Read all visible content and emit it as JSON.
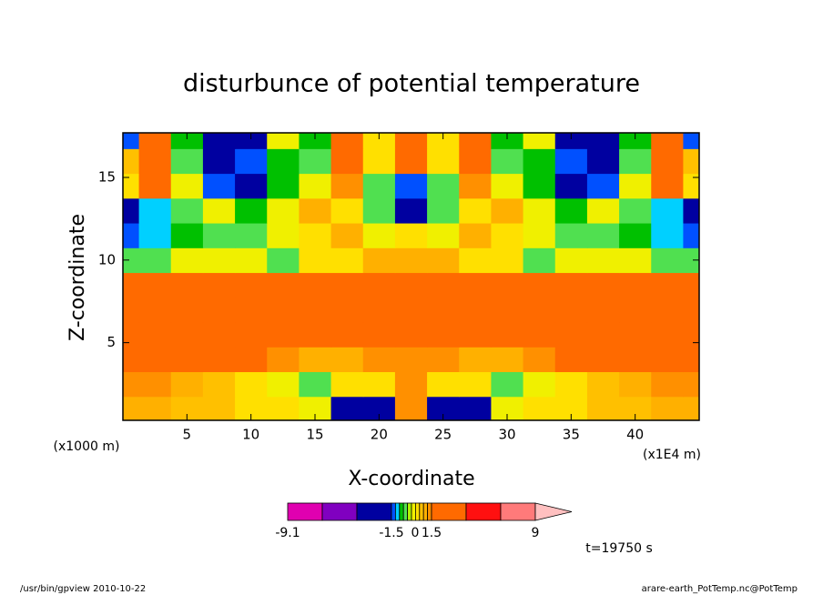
{
  "chart_data": {
    "type": "contour",
    "title": "disturbunce of potential temperature",
    "xlabel": "X-coordinate",
    "ylabel": "Z-coordinate",
    "xunit": "(x1E4 m)",
    "yunit": "(x1000 m)",
    "annotation": "t=19750 s",
    "footer_left": "/usr/bin/gpview  2010-10-22",
    "footer_right": "arare-earth_PotTemp.nc@PotTemp",
    "xlim": [
      0,
      45
    ],
    "ylim": [
      0.3,
      17.7
    ],
    "xticks": [
      5,
      10,
      15,
      20,
      25,
      30,
      35,
      40
    ],
    "yticks": [
      5,
      10,
      15
    ],
    "field": {
      "x": [
        0,
        2.5,
        5,
        7.5,
        10,
        12.5,
        15,
        17.5,
        20,
        22.5,
        25,
        27.5,
        30,
        32.5,
        35,
        37.5,
        40,
        42.5,
        45
      ],
      "z": [
        1,
        2.5,
        4,
        5.5,
        7,
        8.5,
        10,
        11.5,
        13,
        14.5,
        16,
        17.5
      ],
      "values": [
        [
          1.0,
          1.0,
          0.8,
          0.6,
          0.5,
          0.3,
          0.2,
          -2,
          -2,
          1.3,
          -2,
          -2,
          0.2,
          0.3,
          0.5,
          0.6,
          0.8,
          1.0,
          1.0
        ],
        [
          1.3,
          1.3,
          1.0,
          0.8,
          0.5,
          0.2,
          -0.4,
          0.3,
          0.4,
          1.3,
          0.4,
          0.3,
          -0.4,
          0.2,
          0.5,
          0.8,
          1.0,
          1.3,
          1.3
        ],
        [
          1.8,
          1.8,
          1.8,
          1.8,
          1.8,
          1.2,
          1.0,
          1.0,
          1.2,
          1.3,
          1.2,
          1.0,
          1.0,
          1.2,
          1.8,
          1.8,
          1.8,
          1.8,
          1.8
        ],
        [
          2,
          2,
          2,
          2,
          2,
          2,
          2,
          2,
          2,
          2,
          2,
          2,
          2,
          2,
          2,
          2,
          2,
          2,
          2
        ],
        [
          2,
          2,
          2,
          2,
          2,
          2,
          2,
          2,
          2,
          2,
          2,
          2,
          2,
          2,
          2,
          2,
          2,
          2,
          2
        ],
        [
          1.6,
          1.6,
          1.6,
          1.6,
          1.6,
          1.6,
          1.6,
          1.6,
          1.6,
          1.6,
          1.6,
          1.6,
          1.6,
          1.6,
          1.6,
          1.6,
          1.6,
          1.6,
          1.6
        ],
        [
          -0.5,
          -0.5,
          0.1,
          0.2,
          0.2,
          -0.4,
          0.3,
          0.5,
          1.0,
          1.0,
          1.0,
          0.5,
          0.3,
          -0.4,
          0.2,
          0.2,
          0.1,
          -0.5,
          -0.5
        ],
        [
          -1.4,
          -1.1,
          -0.7,
          -0.4,
          -0.5,
          0.2,
          0.4,
          1.0,
          0.2,
          0.4,
          0.2,
          1.0,
          0.4,
          0.2,
          -0.5,
          -0.4,
          -0.7,
          -1.1,
          -1.4
        ],
        [
          -2,
          -1.0,
          -0.5,
          0.2,
          -0.7,
          0.1,
          1.0,
          0.4,
          -0.5,
          -2,
          -0.5,
          0.4,
          1.0,
          0.1,
          -0.7,
          0.2,
          -0.5,
          -1.0,
          -2
        ],
        [
          0.4,
          1.6,
          0.2,
          -1.4,
          -2,
          -0.7,
          0.2,
          1.3,
          -0.5,
          -1.3,
          -0.5,
          1.3,
          0.2,
          -0.7,
          -2,
          -1.4,
          0.2,
          1.6,
          0.4
        ],
        [
          0.8,
          2,
          -0.5,
          -2,
          -1.4,
          -0.7,
          -0.5,
          2,
          0.4,
          2,
          0.4,
          2,
          -0.5,
          -0.7,
          -1.4,
          -2,
          -0.5,
          2,
          0.8
        ],
        [
          -1.3,
          2,
          -0.7,
          -2,
          -2,
          0.2,
          -0.7,
          2,
          0.5,
          2,
          0.5,
          2,
          -0.7,
          0.2,
          -2,
          -2,
          -0.7,
          2,
          -1.3
        ]
      ]
    },
    "colorbar": {
      "levels": [
        -9.1,
        -6,
        -3,
        -1.5,
        -1.2,
        -0.9,
        -0.6,
        -0.3,
        0,
        0.3,
        0.6,
        0.9,
        1.2,
        1.5,
        3,
        6,
        9
      ],
      "colors": [
        "#e000b0",
        "#8000c0",
        "#0000a0",
        "#0050ff",
        "#00d0ff",
        "#00c000",
        "#50e050",
        "#b0f000",
        "#f0f000",
        "#ffe000",
        "#ffc000",
        "#ffb000",
        "#ff9000",
        "#ff6a00",
        "#ff1010",
        "#ff7a7a"
      ],
      "extend_color": "#ffc0c0",
      "ticks": [
        -9.1,
        -1.5,
        0,
        1.5,
        9
      ]
    }
  }
}
